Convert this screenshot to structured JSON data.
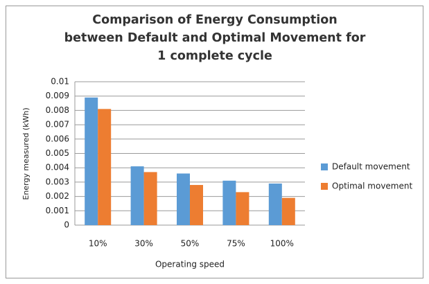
{
  "chart_data": {
    "type": "bar",
    "title": "Comparison of Energy Consumption between Default and Optimal Movement for 1 complete cycle",
    "x_label": "Operating speed",
    "y_label": "Energy measured (kWh)",
    "categories": [
      "10%",
      "30%",
      "50%",
      "75%",
      "100%"
    ],
    "series": [
      {
        "name": "Default movement",
        "color": "#5b9bd5",
        "values": [
          0.0089,
          0.0041,
          0.0036,
          0.0031,
          0.0029
        ]
      },
      {
        "name": "Optimal movement",
        "color": "#ed7d31",
        "values": [
          0.0081,
          0.0037,
          0.0028,
          0.0023,
          0.0019
        ]
      }
    ],
    "ylim": [
      0,
      0.01
    ],
    "yticks": [
      0,
      0.001,
      0.002,
      0.003,
      0.004,
      0.005,
      0.006,
      0.007,
      0.008,
      0.009,
      0.01
    ],
    "grid": true,
    "legend": "right"
  }
}
